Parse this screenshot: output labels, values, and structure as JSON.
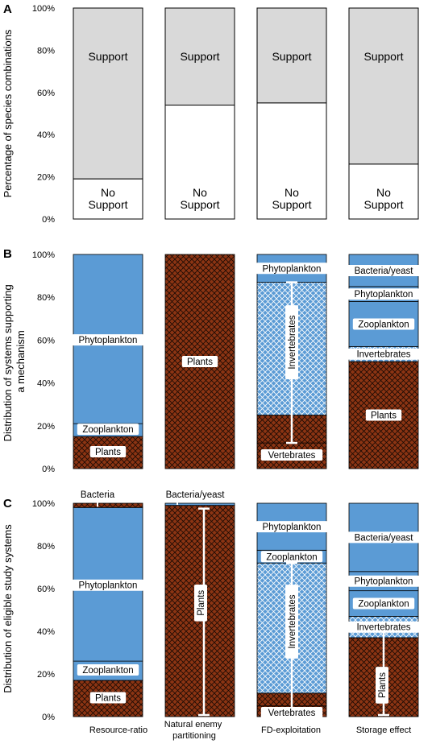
{
  "chart_data": [
    {
      "type": "bar",
      "stacked": true,
      "panel": "A",
      "ylabel": "Percentage of species combinations",
      "yticks": [
        "0%",
        "20%",
        "40%",
        "60%",
        "80%",
        "100%"
      ],
      "categories": [
        "Resource-ratio",
        "Natural enemy partitioning",
        "FD-exploitation",
        "Storage effect"
      ],
      "series": [
        {
          "name": "No Support",
          "style": "white",
          "values": [
            19,
            54,
            55,
            26
          ],
          "labels": [
            [
              "No",
              "Support"
            ],
            [
              "No",
              "Support"
            ],
            [
              "No",
              "Support"
            ],
            [
              "No",
              "Support"
            ]
          ]
        },
        {
          "name": "Support",
          "style": "grey",
          "values": [
            81,
            46,
            45,
            74
          ],
          "labels": [
            [
              "Support"
            ],
            [
              "Support"
            ],
            [
              "Support"
            ],
            [
              "Support"
            ]
          ]
        }
      ],
      "ylim": [
        0,
        100
      ]
    },
    {
      "type": "bar",
      "stacked": true,
      "panel": "B",
      "ylabel_lines": [
        "Distribution of systems supporting",
        "a mechanism"
      ],
      "yticks": [
        "0%",
        "20%",
        "40%",
        "60%",
        "80%",
        "100%"
      ],
      "ylim": [
        0,
        100
      ],
      "bars": [
        {
          "segments": [
            {
              "label": "Plants",
              "value": 15,
              "style": "brown"
            },
            {
              "label": "Zooplankton",
              "value": 6,
              "style": "blue"
            },
            {
              "label": "Phytoplankton",
              "value": 79,
              "style": "blue"
            }
          ]
        },
        {
          "segments": [
            {
              "label": "Plants",
              "value": 100,
              "style": "brown"
            }
          ]
        },
        {
          "segments": [
            {
              "label": "Vertebrates",
              "value": 12,
              "style": "brown"
            },
            {
              "label": "",
              "value": 13,
              "style": "brown"
            },
            {
              "label": "Invertebrates",
              "value": 62,
              "style": "bluehatch"
            },
            {
              "label": "Phytoplankton",
              "value": 13,
              "style": "blue"
            }
          ]
        },
        {
          "segments": [
            {
              "label": "Plants",
              "value": 50,
              "style": "brown"
            },
            {
              "label": "Invertebrates",
              "value": 7,
              "style": "bluehatch"
            },
            {
              "label": "Zooplankton",
              "value": 21,
              "style": "blue"
            },
            {
              "label": "Phytoplankton",
              "value": 7,
              "style": "blue"
            },
            {
              "label": "Bacteria/yeast",
              "value": 15,
              "style": "blue"
            }
          ]
        }
      ]
    },
    {
      "type": "bar",
      "stacked": true,
      "panel": "C",
      "ylabel": "Distribution of eligible study systems",
      "yticks": [
        "0%",
        "20%",
        "40%",
        "60%",
        "80%",
        "100%"
      ],
      "ylim": [
        0,
        100
      ],
      "categories": [
        "Resource-ratio",
        "Natural enemy partitioning",
        "FD-exploitation",
        "Storage effect"
      ],
      "bars": [
        {
          "segments": [
            {
              "label": "Plants",
              "value": 17,
              "style": "brown"
            },
            {
              "label": "Zooplankton",
              "value": 9,
              "style": "blue"
            },
            {
              "label": "Phytoplankton",
              "value": 72,
              "style": "blue"
            },
            {
              "label": "Bacteria",
              "value": 2,
              "style": "brown"
            }
          ]
        },
        {
          "segments": [
            {
              "label": "Plants",
              "value": 99,
              "style": "brown"
            },
            {
              "label": "Bacteria/yeast",
              "value": 1,
              "style": "blue"
            }
          ]
        },
        {
          "segments": [
            {
              "label": "Vertebrates",
              "value": 5,
              "style": "brown"
            },
            {
              "label": "",
              "value": 6,
              "style": "brown"
            },
            {
              "label": "Invertebrates",
              "value": 61,
              "style": "bluehatch"
            },
            {
              "label": "Zooplankton",
              "value": 6,
              "style": "blue"
            },
            {
              "label": "Phytoplankton",
              "value": 22,
              "style": "blue"
            }
          ]
        },
        {
          "segments": [
            {
              "label": "Plants",
              "value": 37,
              "style": "brown"
            },
            {
              "label": "Invertebrates",
              "value": 10,
              "style": "bluehatch"
            },
            {
              "label": "Zooplankton",
              "value": 12,
              "style": "blue"
            },
            {
              "label": "Phytoplankton",
              "value": 9,
              "style": "blue"
            },
            {
              "label": "Bacteria/yeast",
              "value": 32,
              "style": "blue"
            }
          ]
        }
      ]
    }
  ],
  "colors": {
    "blue": "#5b9bd5",
    "brown": "#8b3413",
    "grey": "#d9d9d9",
    "white": "#ffffff"
  }
}
